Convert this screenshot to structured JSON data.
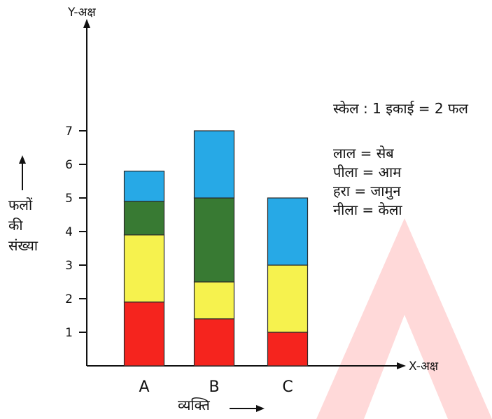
{
  "chart_data": {
    "type": "bar",
    "stacked": true,
    "categories": [
      "A",
      "B",
      "C"
    ],
    "series": [
      {
        "name": "लाल = सेब",
        "color": "#f5241e",
        "values": [
          1.9,
          1.4,
          1.0
        ]
      },
      {
        "name": "पीला = आम",
        "color": "#f6f24e",
        "values": [
          2.0,
          1.1,
          2.0
        ]
      },
      {
        "name": "हरा = जामुन",
        "color": "#387a33",
        "values": [
          1.0,
          2.5,
          0
        ]
      },
      {
        "name": "नीला = केला",
        "color": "#27a9e6",
        "values": [
          0.9,
          2.0,
          2.0
        ]
      }
    ],
    "yticks": [
      "1",
      "2",
      "3",
      "4",
      "5",
      "6",
      "7"
    ],
    "ylim": [
      0,
      7
    ],
    "xlabel": "व्यक्ति",
    "ylabel": "फलों की संख्या",
    "x_axis_label": "X-अक्ष",
    "y_axis_label": "Y-अक्ष",
    "scale_note": "स्केल : 1 इकाई = 2 फल",
    "grid": false,
    "legend_placement": "right"
  },
  "watermark": {
    "color": "#ffd9d9",
    "text": "A"
  }
}
